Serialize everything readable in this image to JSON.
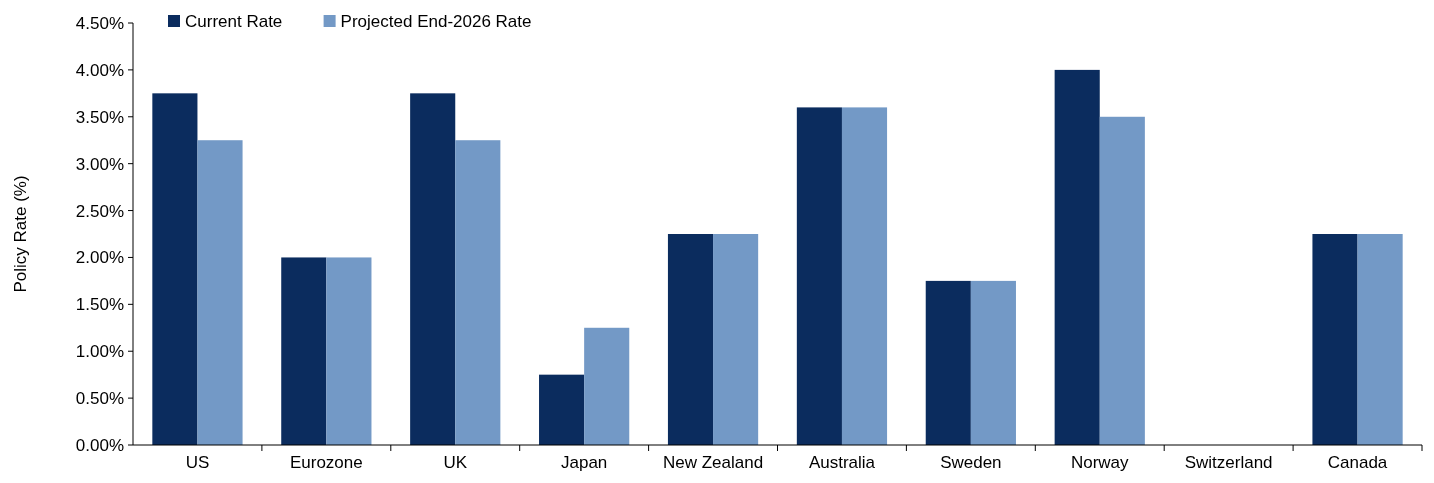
{
  "chart_data": {
    "type": "bar",
    "ylabel": "Policy Rate (%)",
    "categories": [
      "US",
      "Eurozone",
      "UK",
      "Japan",
      "New Zealand",
      "Australia",
      "Sweden",
      "Norway",
      "Switzerland",
      "Canada"
    ],
    "series": [
      {
        "name": "Current Rate",
        "color": "#0b2c5e",
        "values": [
          3.75,
          2.0,
          3.75,
          0.75,
          2.25,
          3.6,
          1.75,
          4.0,
          0,
          2.25
        ]
      },
      {
        "name": "Projected End-2026 Rate",
        "color": "#7399c6",
        "values": [
          3.25,
          2.0,
          3.25,
          1.25,
          2.25,
          3.6,
          1.75,
          3.5,
          0,
          2.25
        ]
      }
    ],
    "ylim": [
      0,
      4.5
    ],
    "yticks": [
      {
        "value": 0,
        "label": "0.00%"
      },
      {
        "value": 0.5,
        "label": "0.50%"
      },
      {
        "value": 1,
        "label": "1.00%"
      },
      {
        "value": 1.5,
        "label": "1.50%"
      },
      {
        "value": 2,
        "label": "2.00%"
      },
      {
        "value": 2.5,
        "label": "2.50%"
      },
      {
        "value": 3,
        "label": "3.00%"
      },
      {
        "value": 3.5,
        "label": "3.50%"
      },
      {
        "value": 4,
        "label": "4.00%"
      },
      {
        "value": 4.5,
        "label": "4.50%"
      }
    ],
    "legend": "top left",
    "grid": false
  }
}
